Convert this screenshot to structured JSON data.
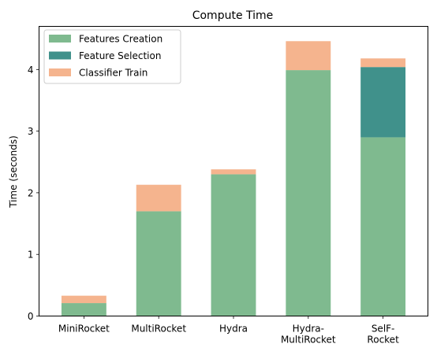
{
  "chart_data": {
    "type": "bar",
    "stacked": true,
    "title": "Compute Time",
    "xlabel": "",
    "ylabel": "Time (seconds)",
    "ylim": [
      0,
      4.7
    ],
    "yticks": [
      0,
      1,
      2,
      3,
      4
    ],
    "categories": [
      "MiniRocket",
      "MultiRocket",
      "Hydra",
      "Hydra-\nMultiRocket",
      "SelF-\nRocket"
    ],
    "category_lines": [
      [
        "MiniRocket"
      ],
      [
        "MultiRocket"
      ],
      [
        "Hydra"
      ],
      [
        "Hydra-",
        "MultiRocket"
      ],
      [
        "SelF-",
        "Rocket"
      ]
    ],
    "series": [
      {
        "name": "Features Creation",
        "color": "#7fba8f",
        "values": [
          0.21,
          1.7,
          2.3,
          3.99,
          2.9
        ]
      },
      {
        "name": "Feature Selection",
        "color": "#40918b",
        "values": [
          0.0,
          0.0,
          0.0,
          0.0,
          1.14
        ]
      },
      {
        "name": "Classifier Train",
        "color": "#f5b48e",
        "values": [
          0.12,
          0.43,
          0.08,
          0.47,
          0.14
        ]
      }
    ],
    "grid": false,
    "legend_position": "top-left"
  }
}
